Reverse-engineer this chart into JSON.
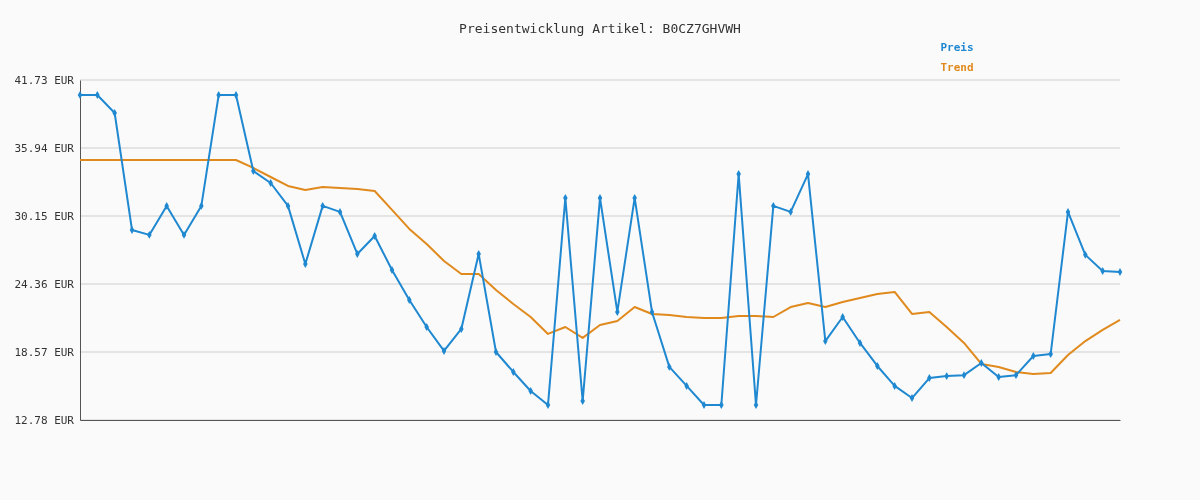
{
  "chart_data": {
    "type": "line",
    "title": "Preisentwicklung Artikel: B0CZ7GHVWH",
    "categories": [
      null,
      null,
      null,
      null,
      null,
      null,
      null,
      null,
      null,
      null,
      null,
      null,
      null,
      null,
      null,
      null,
      null,
      null,
      null,
      null,
      null,
      null,
      null,
      null,
      null,
      null,
      null,
      null,
      null,
      null,
      null,
      null,
      null,
      null,
      null,
      null,
      null,
      null,
      null,
      null,
      null,
      null,
      null,
      null,
      null,
      null,
      null,
      null,
      null,
      null,
      null,
      null,
      null,
      null,
      null,
      null,
      null,
      null,
      null,
      null,
      null
    ],
    "series": [
      {
        "name": "Preis",
        "color": "#1f88d0",
        "marker": "diamond",
        "values": [
          40.45,
          40.45,
          38.92,
          28.96,
          28.54,
          31.01,
          28.54,
          31.01,
          40.45,
          40.45,
          33.98,
          32.96,
          31.01,
          26.06,
          31.01,
          30.5,
          26.92,
          28.45,
          25.55,
          23.0,
          20.7,
          18.66,
          20.53,
          26.92,
          18.57,
          16.87,
          15.25,
          14.06,
          31.69,
          14.4,
          31.69,
          21.98,
          31.69,
          21.98,
          17.3,
          15.68,
          14.06,
          14.06,
          33.72,
          14.06,
          31.01,
          30.5,
          33.72,
          19.5,
          21.55,
          19.34,
          17.38,
          15.68,
          14.65,
          16.35,
          16.52,
          16.6,
          17.63,
          16.44,
          16.6,
          18.23,
          18.4,
          30.5,
          26.84,
          25.47,
          25.38
        ]
      },
      {
        "name": "Trend",
        "color": "#e08a1e",
        "marker": "none",
        "values": [
          34.92,
          34.92,
          34.92,
          34.92,
          34.92,
          34.92,
          34.92,
          34.92,
          34.92,
          34.92,
          34.24,
          33.47,
          32.71,
          32.37,
          32.62,
          32.54,
          32.45,
          32.28,
          30.67,
          29.05,
          27.77,
          26.32,
          25.21,
          25.21,
          23.85,
          22.66,
          21.55,
          20.11,
          20.7,
          19.77,
          20.87,
          21.21,
          22.4,
          21.81,
          21.72,
          21.55,
          21.47,
          21.47,
          21.64,
          21.64,
          21.55,
          22.4,
          22.74,
          22.4,
          22.83,
          23.17,
          23.51,
          23.68,
          21.81,
          21.98,
          20.7,
          19.34,
          17.55,
          17.3,
          16.87,
          16.7,
          16.78,
          18.31,
          19.5,
          20.45,
          21.3
        ]
      }
    ],
    "ylim": [
      12.78,
      41.73
    ],
    "yticks": [
      {
        "value": 12.78,
        "label": "12.78 EUR"
      },
      {
        "value": 18.57,
        "label": "18.57 EUR"
      },
      {
        "value": 24.36,
        "label": "24.36 EUR"
      },
      {
        "value": 30.15,
        "label": "30.15 EUR"
      },
      {
        "value": 35.94,
        "label": "35.94 EUR"
      },
      {
        "value": 41.73,
        "label": "41.73 EUR"
      }
    ],
    "grid": "y",
    "legend": "top right",
    "line_style": "solid"
  }
}
